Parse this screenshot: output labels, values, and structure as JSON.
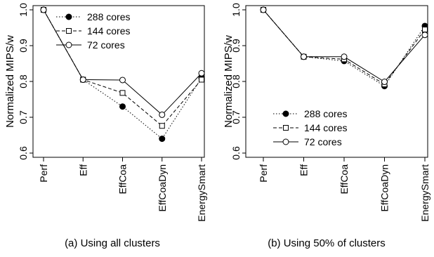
{
  "chart_data": [
    {
      "type": "line",
      "panel": "a",
      "caption": "(a) Using all clusters",
      "ylabel": "Normalized MIPS/w",
      "categories": [
        "Perf",
        "Eff",
        "EffCoa",
        "EffCoaDyn",
        "EnergySmart"
      ],
      "ylim": [
        0.6,
        1.0
      ],
      "yticks": [
        "0.6",
        "0.7",
        "0.8",
        "0.9",
        "1.0"
      ],
      "legend_position": "top-right",
      "grid": false,
      "series": [
        {
          "name": "288 cores",
          "marker": "filled-circle",
          "dash": "dotted",
          "values": [
            1.0,
            0.805,
            0.73,
            0.64,
            0.81
          ]
        },
        {
          "name": "144 cores",
          "marker": "open-square",
          "dash": "dashed",
          "values": [
            1.0,
            0.805,
            0.768,
            0.676,
            0.805
          ]
        },
        {
          "name": "72 cores",
          "marker": "open-circle",
          "dash": "solid",
          "values": [
            1.0,
            0.805,
            0.804,
            0.707,
            0.823
          ]
        }
      ]
    },
    {
      "type": "line",
      "panel": "b",
      "caption": "(b) Using 50% of clusters",
      "ylabel": "Normalized MIPS/w",
      "categories": [
        "Perf",
        "Eff",
        "EffCoa",
        "EffCoaDyn",
        "EnergySmart"
      ],
      "ylim": [
        0.6,
        1.0
      ],
      "yticks": [
        "0.6",
        "0.7",
        "0.8",
        "0.9",
        "1.0"
      ],
      "legend_position": "bottom-center",
      "grid": false,
      "series": [
        {
          "name": "288 cores",
          "marker": "filled-circle",
          "dash": "dotted",
          "values": [
            1.0,
            0.869,
            0.857,
            0.787,
            0.955
          ]
        },
        {
          "name": "144 cores",
          "marker": "open-square",
          "dash": "dashed",
          "values": [
            1.0,
            0.869,
            0.862,
            0.792,
            0.945
          ]
        },
        {
          "name": "72 cores",
          "marker": "open-circle",
          "dash": "solid",
          "values": [
            1.0,
            0.869,
            0.869,
            0.799,
            0.93
          ]
        }
      ]
    }
  ]
}
